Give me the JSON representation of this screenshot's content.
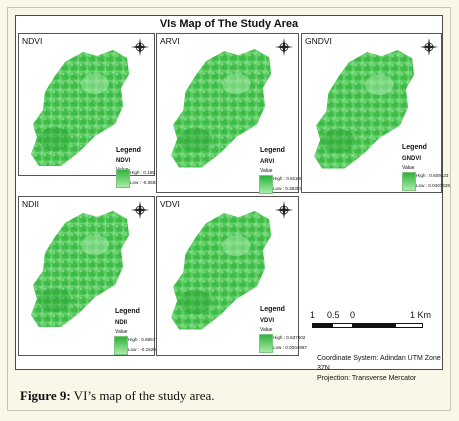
{
  "figure": {
    "title": "VIs Map of The Study Area",
    "caption_label": "Figure 9:",
    "caption_text": " VI’s map of the study area."
  },
  "panels": [
    {
      "name": "NDVI",
      "legend_title": "Legend",
      "index": "NDVI",
      "value_label": "Value",
      "high": "High : 0.155",
      "low": "Low : -0.0592179"
    },
    {
      "name": "ARVI",
      "legend_title": "Legend",
      "index": "ARVI",
      "value_label": "Value",
      "high": "High : 0.811002",
      "low": "Low : 0.383576"
    },
    {
      "name": "GNDVI",
      "legend_title": "Legend",
      "index": "GNDVI",
      "value_label": "Value",
      "high": "High : 0.609123",
      "low": "Low : 0.0407428"
    },
    {
      "name": "NDII",
      "legend_title": "Legend",
      "index": "NDII",
      "value_label": "Value",
      "high": "High : 0.665776",
      "low": "Low : -0.152011"
    },
    {
      "name": "VDVI",
      "legend_title": "Legend",
      "index": "VDVI",
      "value_label": "Value",
      "high": "High : 0.637602",
      "low": "Low : 0.0004987"
    }
  ],
  "scalebar": {
    "ticks": [
      "1",
      "0.5",
      "0",
      "1 Km"
    ]
  },
  "coordinate_system": "Coordinate System: Adindan UTM Zone 37N",
  "projection": "Projection: Transverse Mercator",
  "colors": {
    "ramp_high": "#2fb33a",
    "ramp_low": "#a8ecaa",
    "frame": "#fbf7e8"
  },
  "icons": {
    "north_arrow": "north-arrow-icon"
  }
}
